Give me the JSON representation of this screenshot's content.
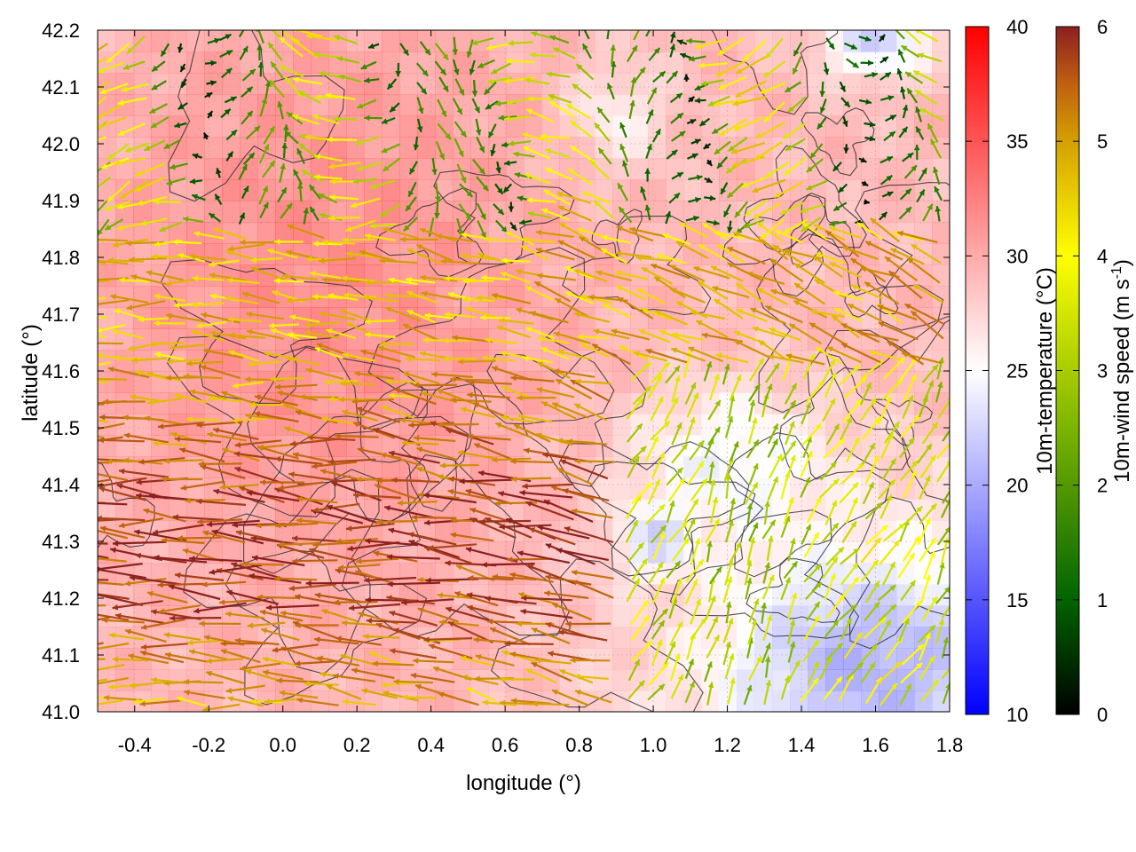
{
  "chart_data": {
    "type": "heatmap",
    "title": "",
    "xlabel": "longitude (°)",
    "ylabel": "latitude (°)",
    "xlim": [
      -0.5,
      1.8
    ],
    "ylim": [
      41.0,
      42.2
    ],
    "x_ticks": [
      -0.4,
      -0.2,
      0.0,
      0.2,
      0.4,
      0.6,
      0.8,
      1.0,
      1.2,
      1.4,
      1.6,
      1.8
    ],
    "x_tick_labels": [
      "-0.4",
      "-0.2",
      "0.0",
      "0.2",
      "0.4",
      "0.6",
      "0.8",
      "1.0",
      "1.2",
      "1.4",
      "1.6",
      "1.8"
    ],
    "y_ticks": [
      41.0,
      41.1,
      41.2,
      41.3,
      41.4,
      41.5,
      41.6,
      41.7,
      41.8,
      41.9,
      42.0,
      42.1,
      42.2
    ],
    "y_tick_labels": [
      "41.0",
      "41.1",
      "41.2",
      "41.3",
      "41.4",
      "41.5",
      "41.6",
      "41.7",
      "41.8",
      "41.9",
      "42.0",
      "42.1",
      "42.2"
    ],
    "grid": true,
    "layers": [
      {
        "kind": "color field",
        "quantity": "10m-temperature",
        "colorbar_label": "10m-temperature (°C)",
        "range": [
          10,
          40
        ],
        "ticks": [
          10,
          15,
          20,
          25,
          30,
          35,
          40
        ],
        "tick_labels": [
          "10",
          "15",
          "20",
          "25",
          "30",
          "35",
          "40"
        ],
        "colormap": [
          "#0000ff",
          "#ffffff",
          "#ff0000"
        ]
      },
      {
        "kind": "wind vectors",
        "quantity": "10m-wind speed",
        "colorbar_label_main": "10m-wind speed (m s",
        "colorbar_label_sup": "-1",
        "colorbar_label_close": ")",
        "range": [
          0,
          6
        ],
        "ticks": [
          0,
          1,
          2,
          3,
          4,
          5,
          6
        ],
        "tick_labels": [
          "0",
          "1",
          "2",
          "3",
          "4",
          "5",
          "6"
        ],
        "colormap": [
          "#000000",
          "#006400",
          "#7cb400",
          "#ffff00",
          "#d4a000",
          "#c06010",
          "#8b2020"
        ]
      },
      {
        "kind": "contours",
        "quantity": "terrain height",
        "color": "#333333"
      }
    ]
  }
}
